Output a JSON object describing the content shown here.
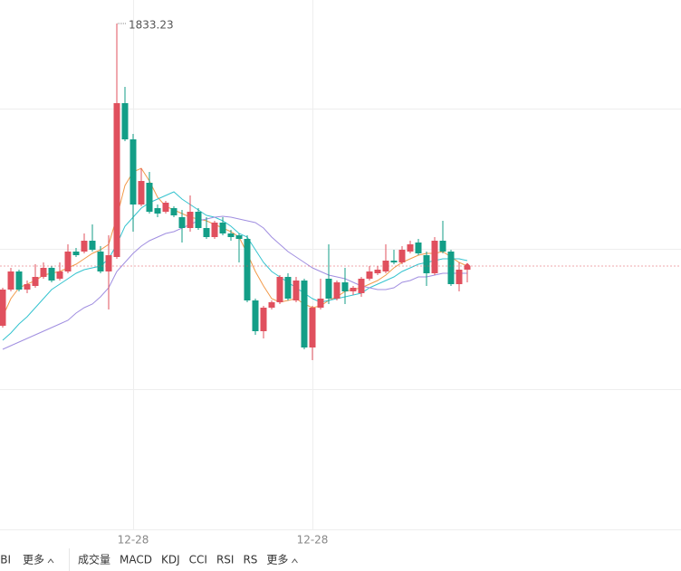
{
  "chart_data": {
    "type": "candlestick",
    "categories": [
      null,
      null,
      null,
      null,
      null,
      null,
      null,
      null,
      null,
      null,
      null,
      null,
      null,
      null,
      null,
      null,
      "12-28",
      null,
      null,
      null,
      null,
      null,
      null,
      null,
      null,
      null,
      null,
      null,
      null,
      null,
      null,
      null,
      null,
      null,
      null,
      null,
      null,
      null,
      "12-28",
      null,
      null,
      null,
      null,
      null,
      null,
      null,
      null,
      null,
      null,
      null,
      null,
      null,
      null,
      null,
      null,
      null,
      null,
      null
    ],
    "open": [
      1666.23,
      1686.23,
      1696.23,
      1686.23,
      1688.23,
      1693.23,
      1698.23,
      1692.23,
      1696.23,
      1707.23,
      1707.23,
      1713.23,
      1707.23,
      1696.23,
      1704.23,
      1789.23,
      1769.23,
      1733.23,
      1745.23,
      1731.23,
      1729.23,
      1731.23,
      1726.23,
      1720.23,
      1729.23,
      1720.23,
      1715.23,
      1723.23,
      1717.23,
      1716.23,
      1714.23,
      1680.23,
      1663.23,
      1676.23,
      1679.23,
      1693.23,
      1680.23,
      1691.23,
      1654.23,
      1676.23,
      1692.23,
      1681.23,
      1690.23,
      1685.23,
      1684.23,
      1692.23,
      1695.23,
      1696.23,
      1702.23,
      1701.23,
      1707.23,
      1712.23,
      1705.23,
      1695.23,
      1713.23,
      1707.23,
      1689.23,
      1697.23
    ],
    "high": [
      1687.23,
      1698.23,
      1697.23,
      1691.23,
      1700.23,
      1701.23,
      1699.23,
      1701.23,
      1711.23,
      1709.23,
      1717.23,
      1722.23,
      1710.23,
      1716.23,
      1833.23,
      1798.23,
      1772.23,
      1753.23,
      1751.23,
      1733.23,
      1735.23,
      1732.23,
      1730.23,
      1738.23,
      1731.23,
      1726.23,
      1724.23,
      1726.23,
      1719.23,
      1717.23,
      1716.23,
      1681.23,
      1677.23,
      1680.23,
      1694.23,
      1695.23,
      1693.23,
      1692.23,
      1677.23,
      1692.23,
      1711.23,
      1691.23,
      1698.23,
      1688.23,
      1693.23,
      1699.23,
      1699.23,
      1711.23,
      1708.23,
      1710.23,
      1713.23,
      1714.23,
      1707.23,
      1715.23,
      1724.23,
      1708.23,
      1701.23,
      1700.23
    ],
    "low": [
      1665.23,
      1685.23,
      1685.23,
      1684.23,
      1687.23,
      1692.23,
      1690.23,
      1691.23,
      1695.23,
      1704.23,
      1706.23,
      1707.23,
      1695.23,
      1675.23,
      1703.23,
      1768.23,
      1718.23,
      1732.23,
      1728.23,
      1726.23,
      1728.23,
      1726.23,
      1712.23,
      1718.23,
      1719.23,
      1714.23,
      1714.23,
      1716.23,
      1713.23,
      1701.23,
      1679.23,
      1661.23,
      1659.23,
      1675.23,
      1678.23,
      1680.23,
      1679.23,
      1653.23,
      1647.23,
      1675.23,
      1678.23,
      1680.23,
      1678.23,
      1683.23,
      1682.23,
      1691.23,
      1694.23,
      1695.23,
      1700.23,
      1700.23,
      1706.23,
      1705.23,
      1688.23,
      1694.23,
      1706.23,
      1688.23,
      1685.23,
      1690.23
    ],
    "close": [
      1686.23,
      1696.23,
      1686.23,
      1689.23,
      1693.23,
      1698.23,
      1691.23,
      1696.23,
      1707.23,
      1705.23,
      1713.23,
      1708.23,
      1696.23,
      1705.23,
      1789.23,
      1769.23,
      1733.23,
      1746.23,
      1729.23,
      1728.23,
      1734.23,
      1727.23,
      1720.23,
      1729.23,
      1720.23,
      1715.23,
      1723.23,
      1717.23,
      1715.23,
      1714.23,
      1680.23,
      1663.23,
      1676.23,
      1679.23,
      1693.23,
      1681.23,
      1691.23,
      1654.23,
      1676.23,
      1681.23,
      1681.23,
      1690.23,
      1685.23,
      1687.23,
      1692.23,
      1696.23,
      1697.23,
      1702.23,
      1701.23,
      1708.23,
      1711.23,
      1706.23,
      1695.23,
      1713.23,
      1707.23,
      1689.23,
      1697.23,
      1699.23
    ],
    "up_color": "#e0505e",
    "down_color": "#139e87",
    "lines": [
      {
        "color": "#f29a4a",
        "values": [
          1671.23,
          1681.23,
          1687.23,
          1689.23,
          1691.23,
          1694.23,
          1695.23,
          1696.23,
          1698.23,
          1700.23,
          1703.23,
          1706.23,
          1708.23,
          1711.23,
          1726.23,
          1743.73,
          1751.23,
          1753.23,
          1746.23,
          1737.23,
          1732.23,
          1730.23,
          1728.23,
          1726.23,
          1725.23,
          1724.23,
          1722.23,
          1720.23,
          1718.23,
          1715.23,
          1706.23,
          1696.23,
          1688.23,
          1681.23,
          1679.23,
          1680.23,
          1681.23,
          1678.23,
          1676.23,
          1677.23,
          1680.23,
          1682.23,
          1685.23,
          1686.23,
          1687.23,
          1689.23,
          1691.23,
          1694.23,
          1698.23,
          1701.23,
          1703.23,
          1705.23,
          1706.23,
          1706.23,
          1707.23,
          1704.23,
          1701.23,
          1699.23
        ]
      },
      {
        "color": "#35c3cf",
        "values": [
          1658.23,
          1662.23,
          1667.23,
          1671.23,
          1676.23,
          1681.23,
          1686.23,
          1689.23,
          1692.23,
          1695.23,
          1697.23,
          1698.23,
          1699.23,
          1703.23,
          1711.23,
          1721.23,
          1726.23,
          1731.23,
          1734.23,
          1736.23,
          1738.23,
          1740.23,
          1736.23,
          1733.23,
          1730.23,
          1727.23,
          1726.23,
          1724.23,
          1721.23,
          1717.23,
          1715.23,
          1708.23,
          1701.23,
          1696.23,
          1693.23,
          1690.23,
          1687.23,
          1684.23,
          1681.23,
          1679.23,
          1680.23,
          1681.23,
          1682.23,
          1683.23,
          1684.23,
          1687.23,
          1689.23,
          1691.23,
          1693.23,
          1696.23,
          1698.23,
          1700.23,
          1701.23,
          1702.23,
          1703.23,
          1703.23,
          1703.23,
          1702.23
        ]
      },
      {
        "color": "#a08ee0",
        "values": [
          1653.23,
          1655.23,
          1657.23,
          1659.23,
          1661.23,
          1663.23,
          1665.23,
          1667.23,
          1669.23,
          1673.23,
          1676.23,
          1678.23,
          1682.23,
          1687.23,
          1696.23,
          1701.23,
          1706.23,
          1710.23,
          1713.23,
          1715.23,
          1717.23,
          1718.23,
          1720.23,
          1722.23,
          1724.23,
          1725.23,
          1726.23,
          1726.73,
          1726.23,
          1725.23,
          1724.23,
          1723.23,
          1720.23,
          1715.23,
          1711.23,
          1707.23,
          1704.23,
          1701.23,
          1698.23,
          1696.23,
          1694.23,
          1693.23,
          1692.23,
          1690.23,
          1688.23,
          1687.23,
          1686.23,
          1686.23,
          1687.23,
          1690.23,
          1691.23,
          1693.23,
          1693.23,
          1694.23,
          1695.23,
          1695.23,
          1695.23,
          1695.23
        ]
      }
    ],
    "ylim": [
      1553.73,
      1846.23
    ]
  },
  "toolbar": {
    "left": [
      "BBI",
      "更多"
    ],
    "right": [
      "成交量",
      "MACD",
      "KDJ",
      "CCI",
      "RSI",
      "RS",
      "更多"
    ]
  }
}
